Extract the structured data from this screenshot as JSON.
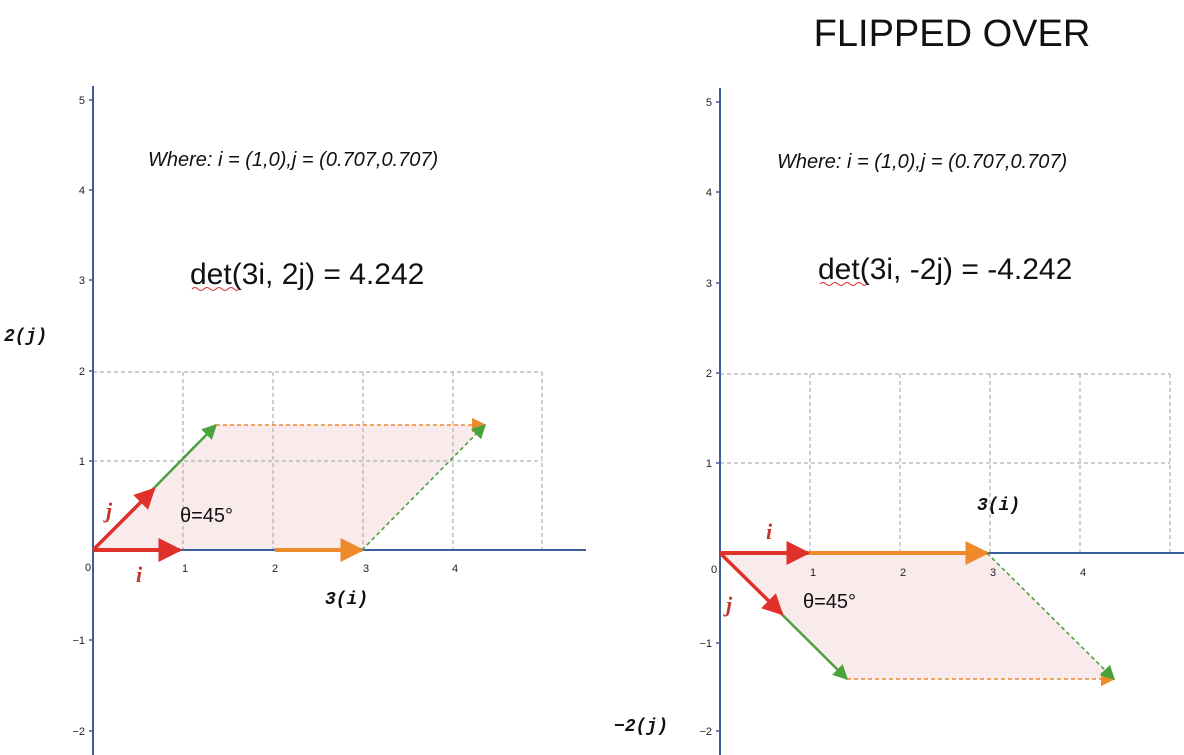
{
  "title": "FLIPPED OVER",
  "colors": {
    "axis": "#3a5f9e",
    "grid": "#b0b0b0",
    "basis": "#e0302a",
    "scaled": "#ee8a2c",
    "green": "#49a23c",
    "fill": "#f9eaec",
    "label_red": "#c0392b"
  },
  "left": {
    "where": "Where: i = (1,0),j = (0.707,0.707)",
    "det": "det(3i, 2j) = 4.242",
    "angle": "θ=45°",
    "label_i": "i",
    "label_j": "j",
    "label_3i": "3(i)",
    "label_2j": "2(j)",
    "origin": "0",
    "x_ticks": [
      "1",
      "2",
      "3",
      "4"
    ],
    "y_ticks": [
      "5",
      "4",
      "3",
      "2",
      "1",
      "−1",
      "−2"
    ]
  },
  "right": {
    "where": "Where: i = (1,0),j = (0.707,0.707)",
    "det": "det(3i, -2j) = -4.242",
    "angle": "θ=45°",
    "label_i": "i",
    "label_j": "j",
    "label_3i": "3(i)",
    "label_neg2j": "−2(j)",
    "origin": "0",
    "x_ticks": [
      "1",
      "2",
      "3",
      "4"
    ],
    "y_ticks": [
      "5",
      "4",
      "3",
      "2",
      "1",
      "−1",
      "−2"
    ]
  }
}
